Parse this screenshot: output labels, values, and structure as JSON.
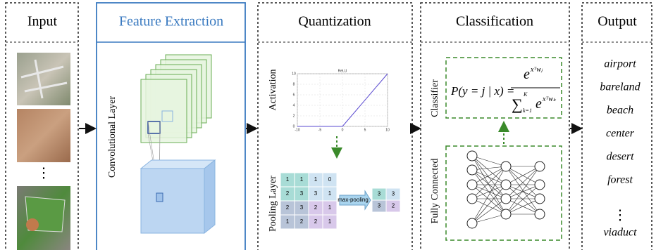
{
  "columns": {
    "input": "Input",
    "feature_extraction": "Feature Extraction",
    "quantization": "Quantization",
    "classification": "Classification",
    "output": "Output"
  },
  "input": {
    "ellipsis": "⋮"
  },
  "feature_extraction": {
    "label": "Convolutional Layer"
  },
  "quantization": {
    "activation_label": "Activation",
    "relu_plot": {
      "title": "ReLU",
      "xticks": [
        -10,
        -5,
        0,
        5,
        10
      ],
      "yticks": [
        0,
        2,
        4,
        6,
        8,
        10
      ]
    },
    "pooling_label": "Pooling Layer",
    "pooling_input": [
      [
        1,
        1,
        1,
        0
      ],
      [
        2,
        3,
        3,
        1
      ],
      [
        2,
        3,
        2,
        1
      ],
      [
        1,
        2,
        2,
        1
      ]
    ],
    "operation": "max-pooling",
    "pooling_output": [
      [
        3,
        3
      ],
      [
        3,
        2
      ]
    ]
  },
  "classification": {
    "classifier_label": "Classifier",
    "formula": {
      "lhs": "P(y = j | x) =",
      "num_base": "e",
      "num_exp": "xᵀwⱼ",
      "sum": "∑",
      "sum_upper": "K",
      "sum_lower": "k=1",
      "den_base": "e",
      "den_exp": "xᵀwₖ"
    },
    "fc_label": "Fully Connected"
  },
  "output": {
    "classes": [
      "airport",
      "bareland",
      "beach",
      "center",
      "desert",
      "forest"
    ],
    "ellipsis": "⋮",
    "last": "viaduct"
  }
}
